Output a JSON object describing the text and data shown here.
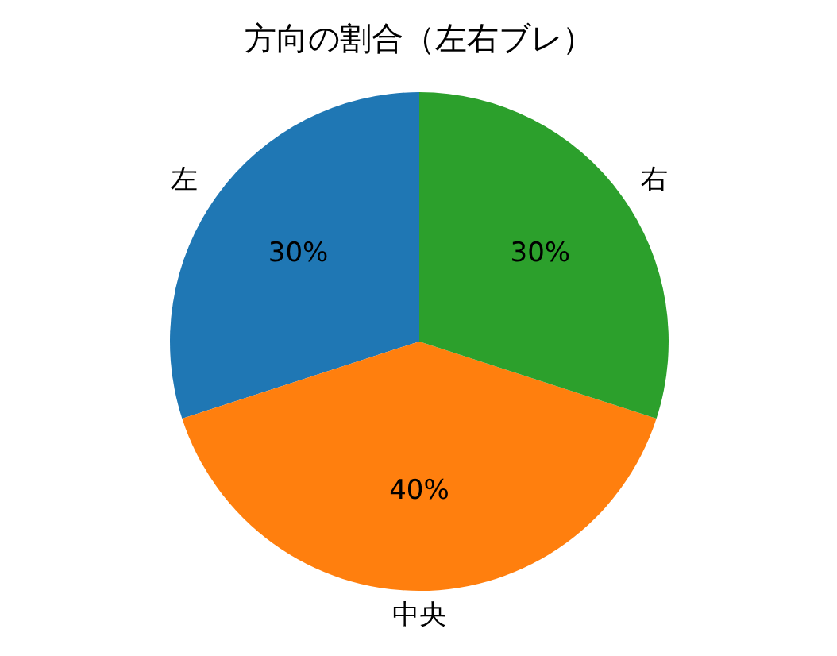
{
  "chart_data": {
    "type": "pie",
    "title": "方向の割合（左右ブレ）",
    "categories": [
      "左",
      "中央",
      "右"
    ],
    "values": [
      30,
      40,
      30
    ],
    "colors": [
      "#1f77b4",
      "#ff7f0e",
      "#2ca02c"
    ],
    "value_labels": [
      "30%",
      "40%",
      "30%"
    ]
  }
}
